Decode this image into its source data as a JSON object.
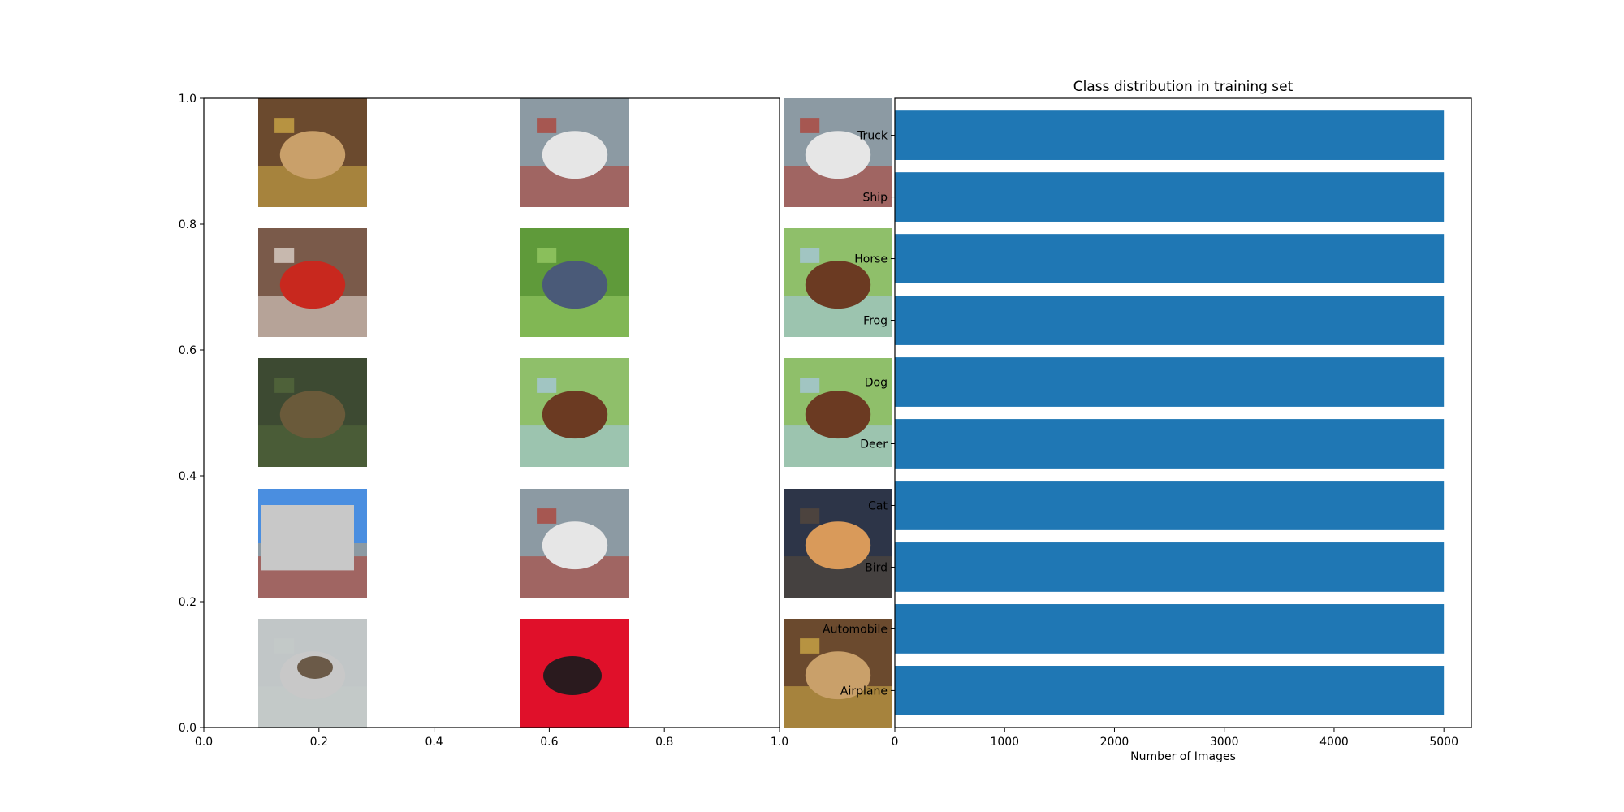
{
  "chart_data": [
    {
      "type": "image-grid",
      "title": "",
      "xlabel": "",
      "ylabel": "",
      "xlim": [
        0.0,
        1.0
      ],
      "ylim": [
        0.0,
        1.0
      ],
      "x_ticks": [
        "0.0",
        "0.2",
        "0.4",
        "0.6",
        "0.8",
        "1.0"
      ],
      "y_ticks": [
        "0.0",
        "0.2",
        "0.4",
        "0.6",
        "0.8",
        "1.0"
      ],
      "images": [
        {
          "row": 0,
          "col": 0,
          "subject": "frog-icon"
        },
        {
          "row": 0,
          "col": 1,
          "subject": "truck-icon"
        },
        {
          "row": 0,
          "col": 2,
          "subject": "truck-icon"
        },
        {
          "row": 1,
          "col": 0,
          "subject": "automobile-icon"
        },
        {
          "row": 1,
          "col": 1,
          "subject": "bird-icon"
        },
        {
          "row": 1,
          "col": 2,
          "subject": "horse-icon"
        },
        {
          "row": 2,
          "col": 0,
          "subject": "deer-icon"
        },
        {
          "row": 2,
          "col": 1,
          "subject": "horse-icon"
        },
        {
          "row": 2,
          "col": 2,
          "subject": "horse-icon"
        },
        {
          "row": 3,
          "col": 0,
          "subject": "truck-icon"
        },
        {
          "row": 3,
          "col": 1,
          "subject": "truck-icon"
        },
        {
          "row": 3,
          "col": 2,
          "subject": "cat-icon"
        },
        {
          "row": 4,
          "col": 0,
          "subject": "deer-icon"
        },
        {
          "row": 4,
          "col": 1,
          "subject": "frog-icon"
        },
        {
          "row": 4,
          "col": 2,
          "subject": "frog-icon"
        }
      ]
    },
    {
      "type": "bar",
      "orientation": "horizontal",
      "title": "Class distribution in training set",
      "xlabel": "Number of Images",
      "ylabel": "",
      "categories": [
        "Airplane",
        "Automobile",
        "Bird",
        "Cat",
        "Deer",
        "Dog",
        "Frog",
        "Horse",
        "Ship",
        "Truck"
      ],
      "values": [
        5000,
        5000,
        5000,
        5000,
        5000,
        5000,
        5000,
        5000,
        5000,
        5000
      ],
      "xlim": [
        0,
        5250
      ],
      "x_ticks": [
        "0",
        "1000",
        "2000",
        "3000",
        "4000",
        "5000"
      ],
      "bar_color": "#1f77b4",
      "grid": false
    }
  ]
}
